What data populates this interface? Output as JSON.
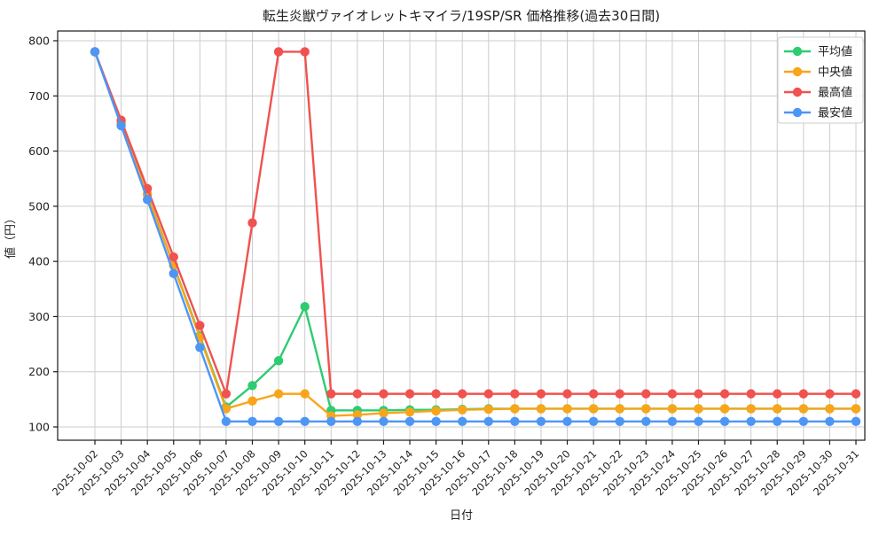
{
  "chart_data": {
    "type": "line",
    "title": "転生炎獣ヴァイオレットキマイラ/19SP/SR 価格推移(過去30日間)",
    "xlabel": "日付",
    "ylabel": "値（円）",
    "x": [
      "2025-10-02",
      "2025-10-03",
      "2025-10-04",
      "2025-10-05",
      "2025-10-06",
      "2025-10-07",
      "2025-10-08",
      "2025-10-09",
      "2025-10-10",
      "2025-10-11",
      "2025-10-12",
      "2025-10-13",
      "2025-10-14",
      "2025-10-15",
      "2025-10-16",
      "2025-10-17",
      "2025-10-18",
      "2025-10-19",
      "2025-10-20",
      "2025-10-21",
      "2025-10-22",
      "2025-10-23",
      "2025-10-24",
      "2025-10-25",
      "2025-10-26",
      "2025-10-27",
      "2025-10-28",
      "2025-10-29",
      "2025-10-30",
      "2025-10-31"
    ],
    "ylim": [
      76,
      818
    ],
    "yticks": [
      100,
      200,
      300,
      400,
      500,
      600,
      700,
      800
    ],
    "grid": true,
    "legend_position": "upper right",
    "colors": {
      "average": "#2ecc71",
      "median": "#f9a51a",
      "max": "#f0524f",
      "min": "#4d96f5",
      "gridline": "#cccccc",
      "spine": "#1a1a1a"
    },
    "series": [
      {
        "key": "average",
        "name": "平均値",
        "color": "#2ecc71",
        "values": [
          780,
          651,
          522,
          393,
          265,
          136,
          175,
          220,
          318,
          130,
          130,
          130,
          131,
          131,
          132,
          133,
          133,
          133,
          133,
          133,
          133,
          133,
          133,
          133,
          133,
          133,
          133,
          133,
          133,
          133
        ]
      },
      {
        "key": "median",
        "name": "中央値",
        "color": "#f9a51a",
        "values": [
          780,
          650,
          521,
          392,
          262,
          133,
          147,
          160,
          160,
          120,
          122,
          125,
          127,
          129,
          131,
          132,
          133,
          133,
          133,
          133,
          133,
          133,
          133,
          133,
          133,
          133,
          133,
          133,
          133,
          133
        ]
      },
      {
        "key": "max",
        "name": "最高値",
        "color": "#f0524f",
        "values": [
          780,
          656,
          532,
          408,
          284,
          160,
          470,
          780,
          780,
          160,
          160,
          160,
          160,
          160,
          160,
          160,
          160,
          160,
          160,
          160,
          160,
          160,
          160,
          160,
          160,
          160,
          160,
          160,
          160,
          160
        ]
      },
      {
        "key": "min",
        "name": "最安値",
        "color": "#4d96f5",
        "values": [
          780,
          646,
          512,
          378,
          244,
          110,
          110,
          110,
          110,
          110,
          110,
          110,
          110,
          110,
          110,
          110,
          110,
          110,
          110,
          110,
          110,
          110,
          110,
          110,
          110,
          110,
          110,
          110,
          110,
          110
        ]
      }
    ]
  }
}
